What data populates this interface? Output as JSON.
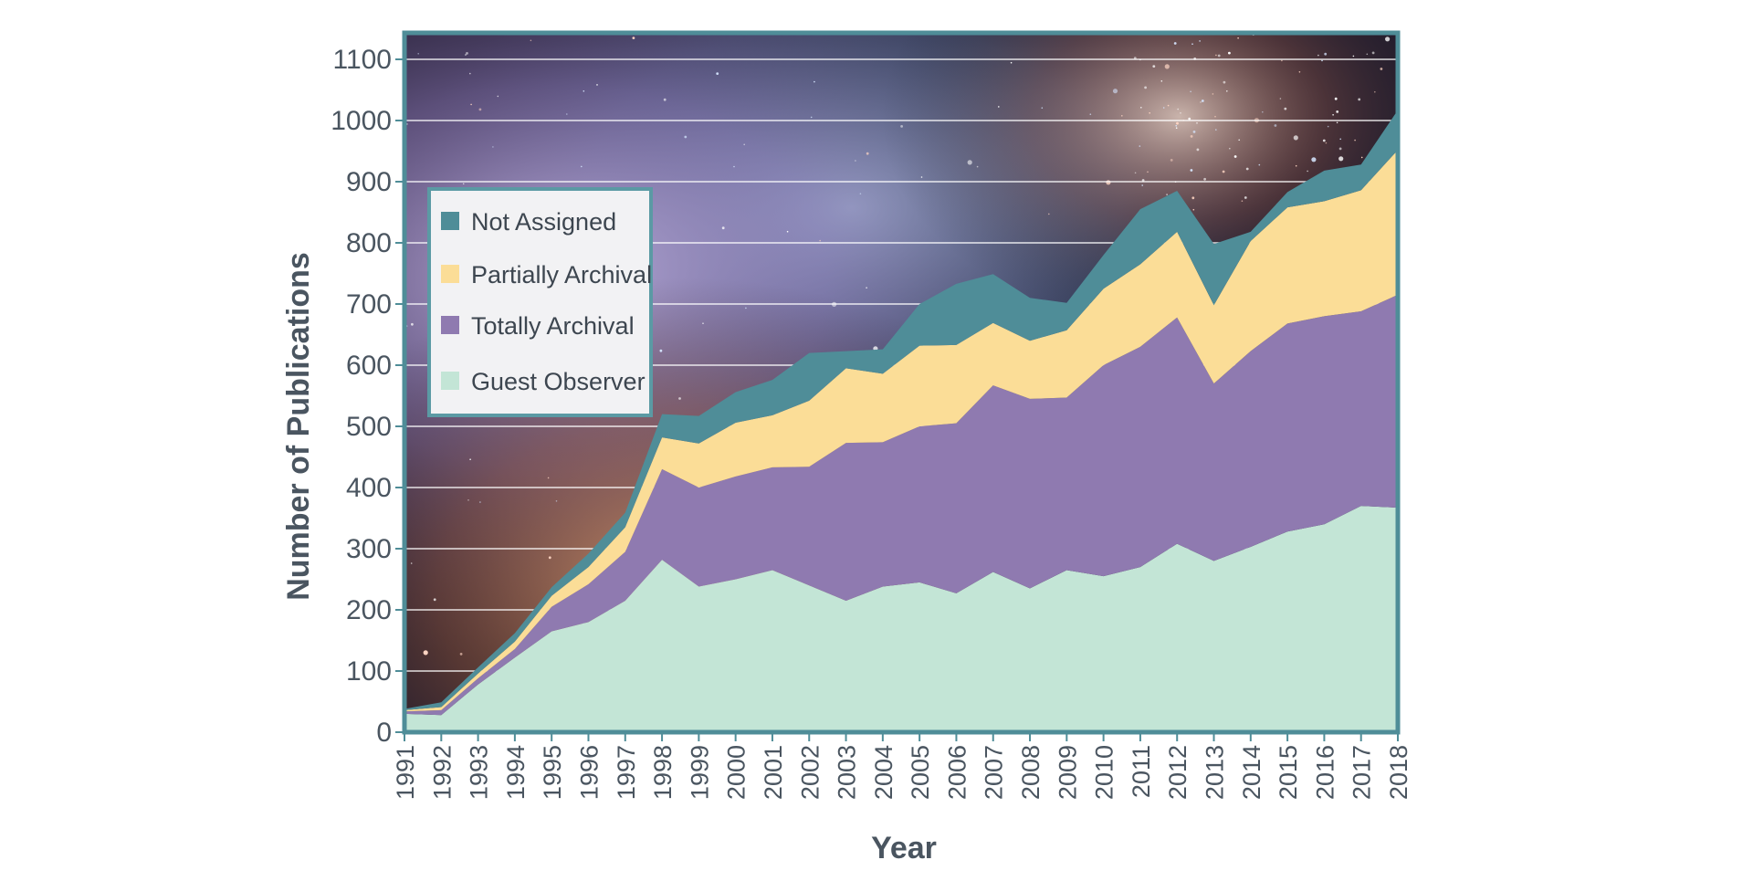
{
  "chart_data": {
    "type": "area",
    "stacked": true,
    "xlabel": "Year",
    "ylabel": "Number of Publications",
    "ylim": [
      0,
      1120
    ],
    "yticks": [
      0,
      100,
      200,
      300,
      400,
      500,
      600,
      700,
      800,
      900,
      1000,
      1100
    ],
    "grid": "horizontal",
    "legend_position": "upper-left",
    "background": "nebula star-field photograph",
    "categories": [
      "1991",
      "1992",
      "1993",
      "1994",
      "1995",
      "1996",
      "1997",
      "1998",
      "1999",
      "2000",
      "2001",
      "2002",
      "2003",
      "2004",
      "2005",
      "2006",
      "2007",
      "2008",
      "2009",
      "2010",
      "2011",
      "2012",
      "2013",
      "2014",
      "2015",
      "2016",
      "2017",
      "2018"
    ],
    "series": [
      {
        "name": "Guest Observer",
        "color": "#c3e5d6",
        "values": [
          30,
          28,
          78,
          122,
          165,
          180,
          215,
          282,
          238,
          250,
          265,
          240,
          215,
          238,
          245,
          227,
          262,
          235,
          265,
          255,
          270,
          308,
          280,
          303,
          328,
          340,
          370,
          367
        ]
      },
      {
        "name": "Totally Archival",
        "color": "#8f7ab0",
        "values": [
          4,
          8,
          10,
          14,
          40,
          62,
          80,
          148,
          162,
          168,
          168,
          194,
          258,
          236,
          255,
          278,
          305,
          310,
          282,
          345,
          360,
          370,
          290,
          320,
          340,
          340,
          318,
          348
        ]
      },
      {
        "name": "Partially Archival",
        "color": "#fbdd97",
        "values": [
          2,
          5,
          8,
          12,
          18,
          28,
          40,
          52,
          72,
          88,
          85,
          108,
          122,
          112,
          132,
          128,
          102,
          95,
          110,
          125,
          135,
          140,
          128,
          180,
          190,
          188,
          198,
          237
        ]
      },
      {
        "name": "Not Assigned",
        "color": "#4f8d98",
        "values": [
          2,
          8,
          10,
          14,
          14,
          22,
          24,
          38,
          45,
          50,
          58,
          78,
          28,
          40,
          68,
          100,
          80,
          70,
          45,
          55,
          90,
          67,
          100,
          15,
          25,
          50,
          42,
          65
        ]
      }
    ]
  }
}
